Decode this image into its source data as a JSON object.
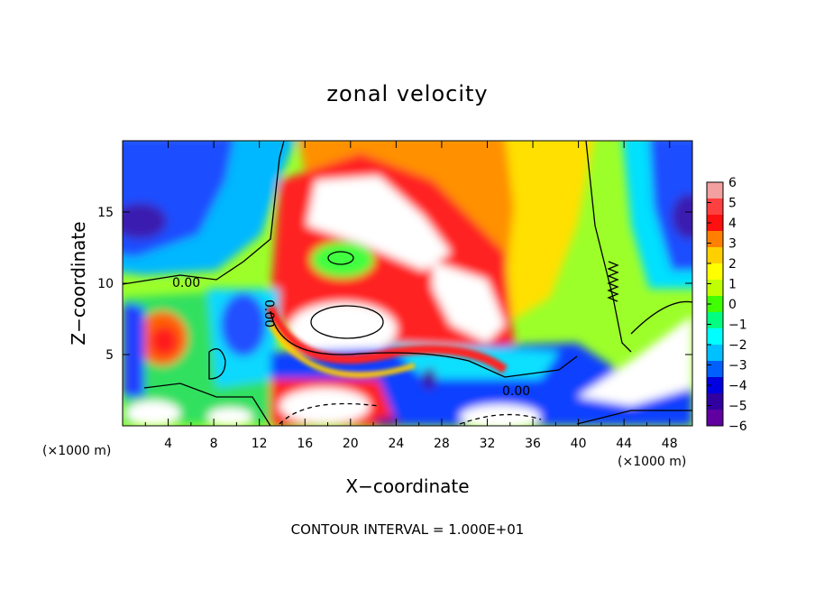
{
  "chart_data": {
    "type": "heatmap",
    "title": "zonal velocity",
    "xlabel": "X−coordinate",
    "ylabel": "Z−coordinate",
    "x_unit_note": "(×1000 m)",
    "y_unit_note": "(×1000 m)",
    "xlim": [
      0,
      50
    ],
    "ylim": [
      0,
      20
    ],
    "x_ticks": [
      "4",
      "8",
      "12",
      "16",
      "20",
      "24",
      "28",
      "32",
      "36",
      "40",
      "44",
      "48"
    ],
    "y_ticks": [
      "5",
      "10",
      "15"
    ],
    "colorbar": {
      "range": [
        -6,
        6
      ],
      "ticks": [
        "6",
        "5",
        "4",
        "3",
        "2",
        "1",
        "0",
        "−1",
        "−2",
        "−3",
        "−4",
        "−5",
        "−6"
      ],
      "colors": [
        "#f2a0a0",
        "#ff4040",
        "#ff1010",
        "#ff8000",
        "#ffd000",
        "#ffff00",
        "#c0ff00",
        "#40ff00",
        "#00ff80",
        "#00ffff",
        "#00c0ff",
        "#0060ff",
        "#0000e0",
        "#3000a0",
        "#6000a0"
      ]
    },
    "contour_labels": [
      "0.00",
      "0.00",
      "0.00"
    ],
    "contour_interval_text": "CONTOUR INTERVAL = 1.000E+01",
    "grid": false
  }
}
